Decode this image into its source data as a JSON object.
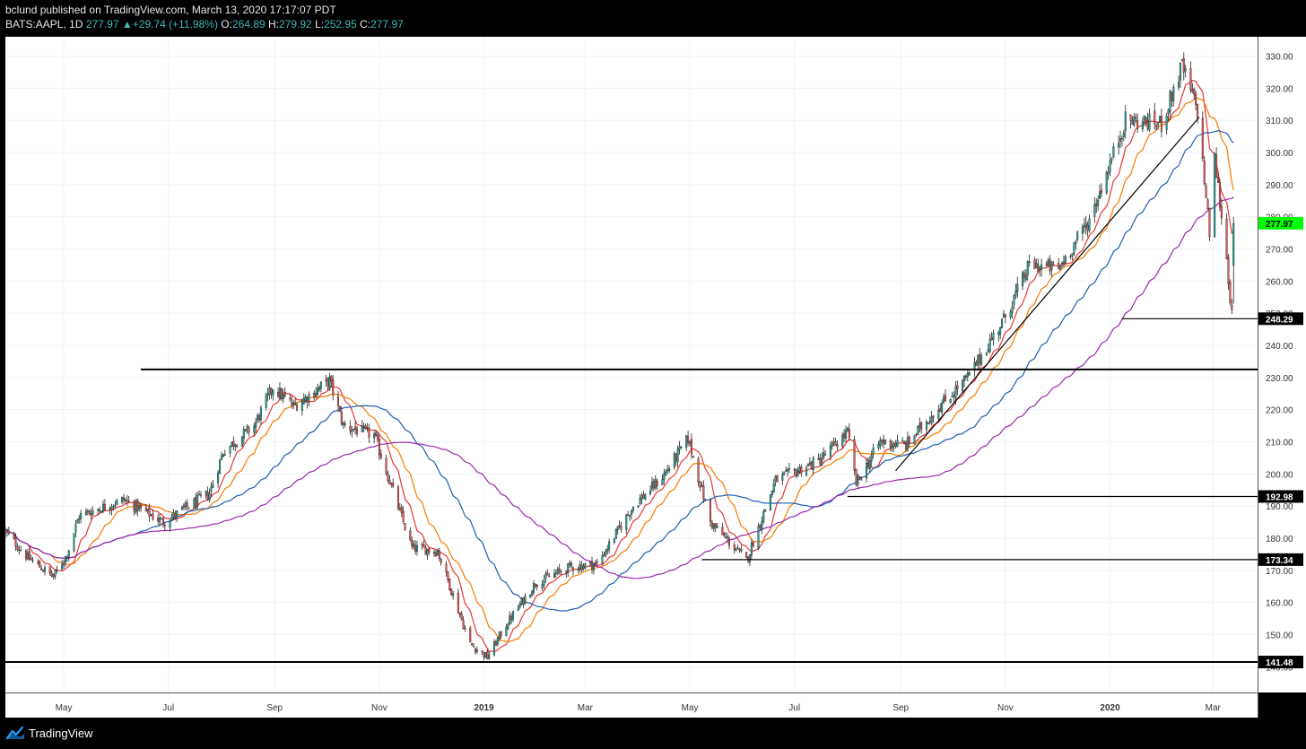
{
  "header": {
    "publisher_line": "bclund published on TradingView.com, March 13, 2020 17:17:07 PDT",
    "symbol": "BATS:AAPL, 1D",
    "last": "277.97",
    "change_arrow": "▲",
    "change": "+29.74 (+11.98%)",
    "o_label": "O:",
    "o": "264.89",
    "h_label": "H:",
    "h": "279.92",
    "l_label": "L:",
    "l": "252.95",
    "c_label": "C:",
    "c": "277.97"
  },
  "footer": {
    "brand": "TradingView"
  },
  "colors": {
    "up": "#26a69a",
    "down": "#ef5350",
    "ma_red": "#e53935",
    "ma_orange": "#f57c00",
    "ma_blue": "#1e5fb4",
    "ma_purple": "#9c27b0",
    "price_badge": "#00ff00"
  },
  "chart_data": {
    "type": "candlestick",
    "ylim": [
      132,
      336
    ],
    "y_ticks": [
      "140.00",
      "150.00",
      "160.00",
      "170.00",
      "180.00",
      "190.00",
      "200.00",
      "210.00",
      "220.00",
      "230.00",
      "240.00",
      "250.00",
      "260.00",
      "270.00",
      "280.00",
      "290.00",
      "300.00",
      "310.00",
      "320.00",
      "330.00"
    ],
    "x_labels": [
      "May",
      "Jul",
      "Sep",
      "Nov",
      "2019",
      "Mar",
      "May",
      "Jul",
      "Sep",
      "Nov",
      "2020",
      "Mar"
    ],
    "x_range": [
      "2018-03-28",
      "2020-03-27"
    ],
    "x_label_dates": [
      "2018-05-01",
      "2018-07-01",
      "2018-09-01",
      "2018-11-01",
      "2019-01-01",
      "2019-03-01",
      "2019-05-01",
      "2019-07-01",
      "2019-09-01",
      "2019-11-01",
      "2020-01-01",
      "2020-03-01"
    ],
    "price_anchors": [
      [
        "2018-03-28",
        182
      ],
      [
        "2018-04-10",
        174
      ],
      [
        "2018-04-25",
        168
      ],
      [
        "2018-05-03",
        175
      ],
      [
        "2018-05-10",
        187
      ],
      [
        "2018-06-05",
        192
      ],
      [
        "2018-06-28",
        185
      ],
      [
        "2018-07-25",
        194
      ],
      [
        "2018-08-02",
        207
      ],
      [
        "2018-08-20",
        215
      ],
      [
        "2018-08-31",
        227
      ],
      [
        "2018-09-12",
        221
      ],
      [
        "2018-10-03",
        229
      ],
      [
        "2018-10-11",
        215
      ],
      [
        "2018-10-29",
        212
      ],
      [
        "2018-11-05",
        201
      ],
      [
        "2018-11-20",
        177
      ],
      [
        "2018-12-05",
        176
      ],
      [
        "2018-12-24",
        147
      ],
      [
        "2019-01-03",
        143
      ],
      [
        "2019-01-15",
        154
      ],
      [
        "2019-01-31",
        166
      ],
      [
        "2019-02-20",
        171
      ],
      [
        "2019-03-08",
        172
      ],
      [
        "2019-03-29",
        190
      ],
      [
        "2019-04-15",
        199
      ],
      [
        "2019-04-30",
        211
      ],
      [
        "2019-05-13",
        185
      ],
      [
        "2019-06-03",
        173
      ],
      [
        "2019-06-20",
        198
      ],
      [
        "2019-07-15",
        204
      ],
      [
        "2019-08-01",
        213
      ],
      [
        "2019-08-06",
        197
      ],
      [
        "2019-08-20",
        210
      ],
      [
        "2019-09-04",
        209
      ],
      [
        "2019-09-20",
        219
      ],
      [
        "2019-10-10",
        230
      ],
      [
        "2019-10-31",
        248
      ],
      [
        "2019-11-15",
        265
      ],
      [
        "2019-12-02",
        264
      ],
      [
        "2019-12-20",
        279
      ],
      [
        "2020-01-10",
        310
      ],
      [
        "2020-01-31",
        309
      ],
      [
        "2020-02-12",
        327
      ],
      [
        "2020-02-21",
        313
      ],
      [
        "2020-02-28",
        275
      ],
      [
        "2020-03-02",
        298
      ],
      [
        "2020-03-09",
        267
      ],
      [
        "2020-03-12",
        249
      ],
      [
        "2020-03-13",
        277.97
      ]
    ],
    "moving_averages": [
      {
        "period": 10,
        "color": "#e53935"
      },
      {
        "period": 20,
        "color": "#f57c00"
      },
      {
        "period": 50,
        "color": "#1e5fb4"
      },
      {
        "period": 100,
        "color": "#9c27b0"
      }
    ],
    "horizontal_levels": [
      {
        "price": 232.5,
        "from": "2018-06-15",
        "to": "end",
        "width": 2,
        "badge": ""
      },
      {
        "price": 248.29,
        "from": "2020-01-08",
        "to": "end",
        "width": 1.2,
        "badge": "248.29"
      },
      {
        "price": 192.98,
        "from": "2019-08-01",
        "to": "end",
        "width": 1.2,
        "badge": "192.98"
      },
      {
        "price": 173.34,
        "from": "2019-05-08",
        "to": "end",
        "width": 1.2,
        "badge": "173.34"
      },
      {
        "price": 141.48,
        "from": "start",
        "to": "end",
        "width": 2,
        "badge": "141.48"
      }
    ],
    "trendline": {
      "from": [
        "2019-08-29",
        201
      ],
      "to": [
        "2020-02-22",
        311
      ]
    },
    "last_price_badge": "277.97"
  }
}
